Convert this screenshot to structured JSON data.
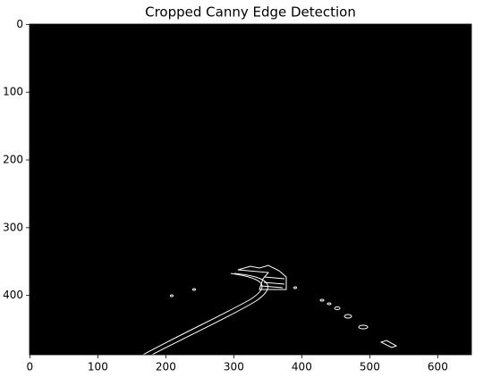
{
  "chart_data": {
    "type": "image",
    "title": "Cropped Canny Edge Detection",
    "xlim": [
      -0.5,
      649.5
    ],
    "ylim": [
      487.5,
      -0.5
    ],
    "xticks": [
      0,
      100,
      200,
      300,
      400,
      500,
      600
    ],
    "yticks": [
      0,
      100,
      200,
      300,
      400
    ],
    "background": "#000000"
  }
}
